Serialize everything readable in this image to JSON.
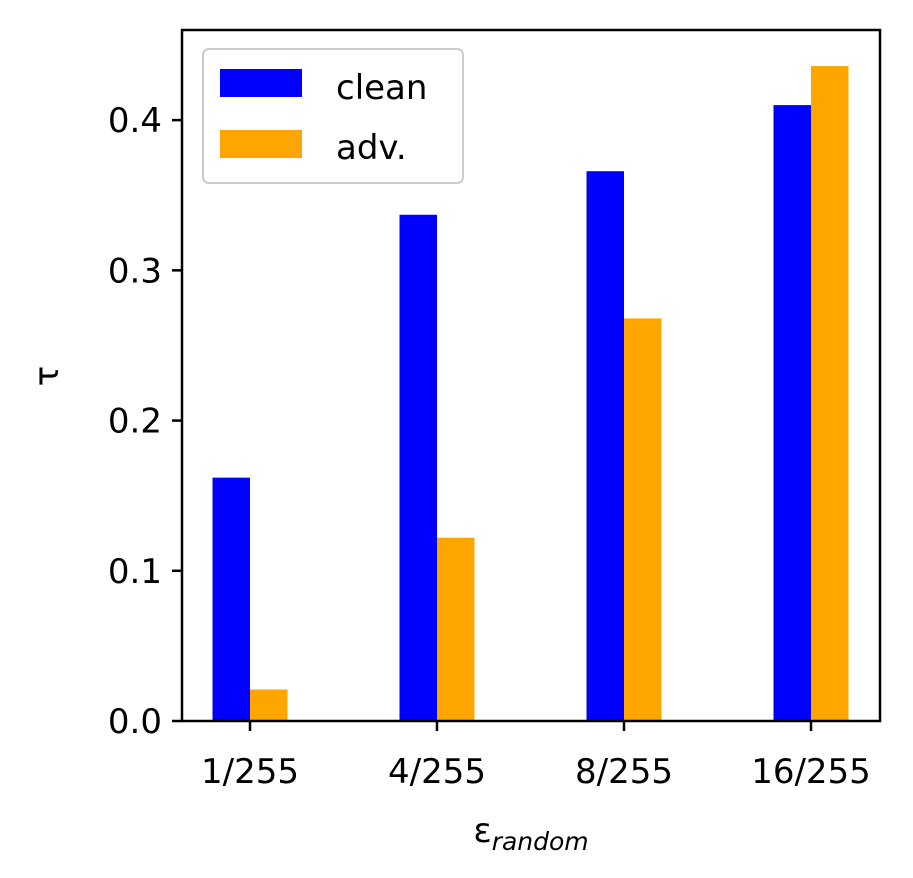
{
  "chart_data": {
    "type": "bar",
    "title": "",
    "xlabel": {
      "main": "ε",
      "subscript": "random"
    },
    "ylabel": "τ",
    "categories": [
      "1/255",
      "4/255",
      "8/255",
      "16/255"
    ],
    "series": [
      {
        "name": "clean",
        "color": "#0000ff",
        "values": [
          0.162,
          0.337,
          0.366,
          0.41
        ]
      },
      {
        "name": "adv.",
        "color": "#ffa500",
        "values": [
          0.021,
          0.122,
          0.268,
          0.436
        ]
      }
    ],
    "ylim": [
      0,
      0.46
    ],
    "yticks": [
      0.0,
      0.1,
      0.2,
      0.3,
      0.4
    ],
    "ytick_labels": [
      "0.0",
      "0.1",
      "0.2",
      "0.3",
      "0.4"
    ],
    "grid": false,
    "legend_position": "top-left"
  }
}
